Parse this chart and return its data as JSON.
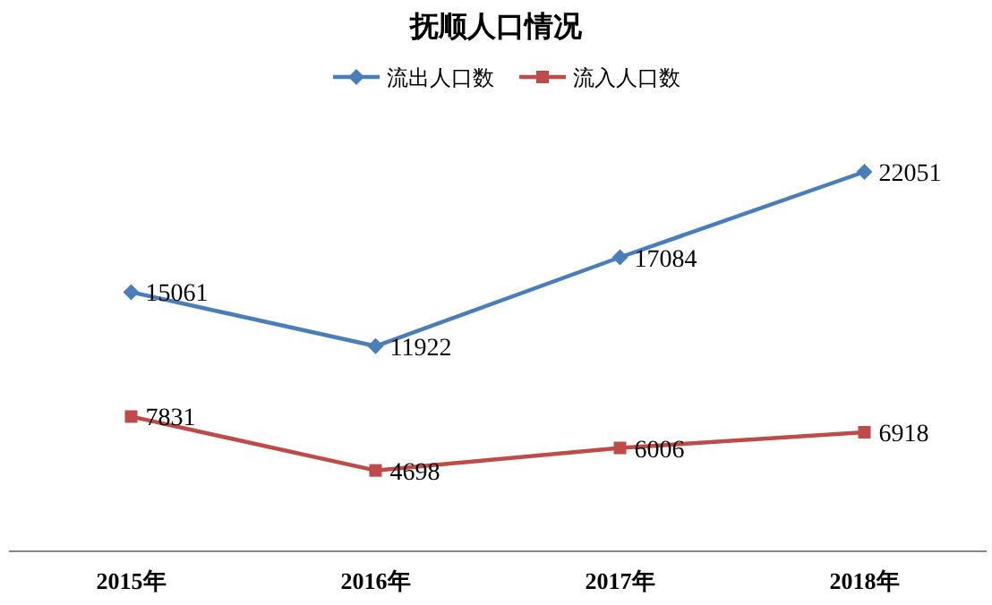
{
  "chart_data": {
    "type": "line",
    "title": "抚顺人口情况",
    "categories": [
      "2015年",
      "2016年",
      "2017年",
      "2018年"
    ],
    "series": [
      {
        "name": "流出人口数",
        "color": "#4a7ebb",
        "marker": "diamond",
        "values": [
          15061,
          11922,
          17084,
          22051
        ]
      },
      {
        "name": "流入人口数",
        "color": "#be4b48",
        "marker": "square",
        "values": [
          7831,
          4698,
          6006,
          6918
        ]
      }
    ],
    "data_labels": true,
    "legend": "top"
  }
}
